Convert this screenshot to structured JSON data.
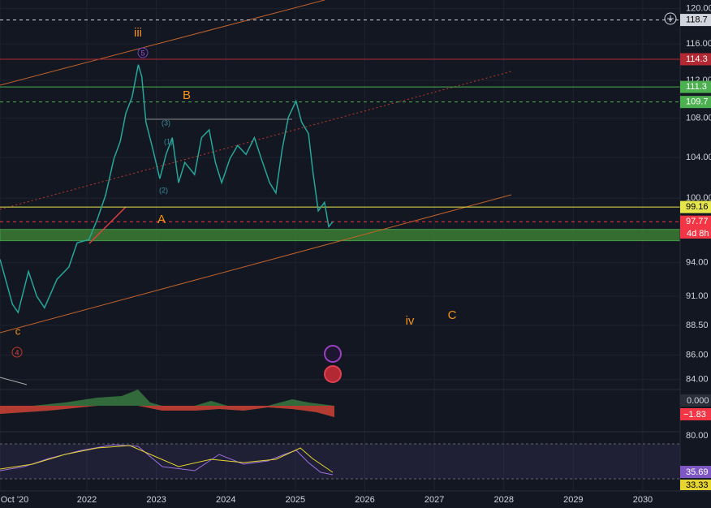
{
  "price_axis": {
    "log_scale": true,
    "ylim": [
      83.2,
      121
    ],
    "ticks": [
      {
        "value": 120,
        "label": "120.00"
      },
      {
        "value": 116,
        "label": "116.00"
      },
      {
        "value": 112,
        "label": "112.00"
      },
      {
        "value": 108,
        "label": "108.00"
      },
      {
        "value": 104,
        "label": "104.00"
      },
      {
        "value": 100,
        "label": "100.00"
      },
      {
        "value": 94,
        "label": "94.00"
      },
      {
        "value": 91,
        "label": "91.00"
      },
      {
        "value": 88.5,
        "label": "88.50"
      },
      {
        "value": 86,
        "label": "86.00"
      },
      {
        "value": 84,
        "label": "84.00"
      }
    ]
  },
  "time_axis": {
    "xlim": [
      2020.75,
      2030.97
    ],
    "ticks": [
      {
        "value": 2020.75,
        "label": "Oct '20"
      },
      2022,
      2023,
      2024,
      2025,
      2026,
      2027,
      2028,
      2029,
      2030
    ]
  },
  "series": {
    "color": "#26a69a",
    "x": [
      2020.75,
      2020.93,
      2021.01,
      2021.16,
      2021.28,
      2021.39,
      2021.57,
      2021.74,
      2021.86,
      2022.03,
      2022.15,
      2022.27,
      2022.39,
      2022.48,
      2022.56,
      2022.65,
      2022.74,
      2022.79,
      2022.85,
      2022.95,
      2023.05,
      2023.14,
      2023.23,
      2023.32,
      2023.41,
      2023.55,
      2023.65,
      2023.76,
      2023.85,
      2023.94,
      2024.06,
      2024.17,
      2024.29,
      2024.41,
      2024.51,
      2024.63,
      2024.72,
      2024.81,
      2024.9,
      2025.01,
      2025.09,
      2025.19,
      2025.25,
      2025.33,
      2025.42,
      2025.48,
      2025.54
    ],
    "close": [
      94.3,
      90.3,
      89.6,
      93.2,
      91.0,
      90.0,
      92.5,
      93.6,
      95.8,
      96.1,
      98.0,
      100.3,
      103.9,
      105.6,
      108.5,
      110.2,
      113.7,
      112.4,
      107.6,
      104.8,
      101.9,
      104.3,
      106.0,
      101.5,
      103.5,
      102.3,
      106.0,
      106.8,
      103.5,
      101.5,
      103.9,
      105.2,
      104.3,
      106.0,
      103.9,
      101.5,
      100.5,
      104.8,
      108.1,
      109.8,
      107.6,
      106.4,
      102.7,
      98.8,
      99.6,
      97.3,
      97.77
    ]
  },
  "zone": {
    "low": 96.0,
    "high": 97.05,
    "color": "#3a7d32"
  },
  "levels": [
    {
      "value": 118.7,
      "color": "#d1d4dc",
      "dashed": true
    },
    {
      "value": 114.3,
      "color": "#b22833",
      "dashed": false
    },
    {
      "value": 111.3,
      "color": "#4caf50",
      "dashed": false
    },
    {
      "value": 109.7,
      "color": "#4caf50",
      "dashed": true
    },
    {
      "value": 99.16,
      "color": "#e6e64c",
      "dashed": false
    },
    {
      "value": 97.77,
      "color": "#f23645",
      "dashed": true
    }
  ],
  "countdown": "4d 8h",
  "annotations": {
    "iii": "iii",
    "b": "B",
    "a": "A",
    "iv": "iv",
    "c_upper": "C",
    "c_lower": "c",
    "four": "4",
    "five": "5",
    "w1": "(1)",
    "w2": "(2)",
    "w3": "(3)"
  },
  "indicators": {
    "hist_zero": "0.000",
    "hist_value": "−1.83",
    "rsi_upper": "80.00",
    "rsi_value": "35.69",
    "rsi_lower": "33.33"
  }
}
